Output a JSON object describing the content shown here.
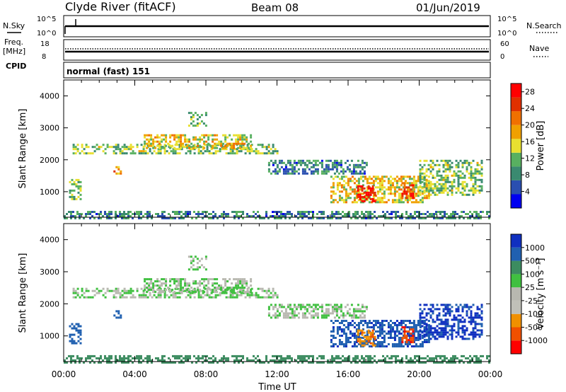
{
  "header": {
    "station": "Clyde River (fitACF)",
    "beam": "Beam 08",
    "date": "01/Jun/2019"
  },
  "strip_panels": {
    "nsky_label": "N.Sky",
    "nsky_ticks": [
      "10^5",
      "10^0"
    ],
    "nsearch_label": "N.Search",
    "nsearch_ticks": [
      "10^5",
      "10^0"
    ],
    "freq_label_1": "Freq.",
    "freq_label_2": "[MHz]",
    "freq_ticks": [
      "18",
      "8"
    ],
    "nave_label": "Nave",
    "nave_ticks": [
      "60",
      "0"
    ],
    "cpid_label": "CPID",
    "cpid_value": "normal (fast) 151"
  },
  "colors": {
    "power": [
      "#0000f0",
      "#2a4fb0",
      "#3a8a70",
      "#58b060",
      "#e8e030",
      "#f0a000",
      "#f07000",
      "#e03000",
      "#ff0000"
    ],
    "velocity": [
      "#ff0000",
      "#f05000",
      "#f09000",
      "#c0c0b8",
      "#b8b8b0",
      "#40c040",
      "#3c8c60",
      "#2060b0",
      "#1030c0"
    ]
  },
  "chart_data": [
    {
      "type": "heatmap",
      "name": "power",
      "ylabel": "Slant Range [km]",
      "yticks": [
        "1000",
        "2000",
        "3000",
        "4000"
      ],
      "ylim": [
        200,
        4500
      ],
      "xlim": [
        0,
        24
      ],
      "colorbar_label": "Power [dB]",
      "colorbar_ticks": [
        "4",
        "8",
        "12",
        "16",
        "20",
        "24",
        "28"
      ],
      "colorbar_range": [
        0,
        30
      ],
      "features": [
        {
          "t0": 0.5,
          "t1": 12.0,
          "r0": 2200,
          "r1": 2500,
          "value": 12
        },
        {
          "t0": 4.5,
          "t1": 10.5,
          "r0": 2400,
          "r1": 2800,
          "value": 16
        },
        {
          "t0": 7.0,
          "t1": 8.0,
          "r0": 3100,
          "r1": 3500,
          "value": 12
        },
        {
          "t0": 11.5,
          "t1": 17.0,
          "r0": 1600,
          "r1": 2000,
          "value": 8
        },
        {
          "t0": 2.8,
          "t1": 3.2,
          "r0": 1550,
          "r1": 1800,
          "value": 20
        },
        {
          "t0": 0.3,
          "t1": 1.0,
          "r0": 800,
          "r1": 1400,
          "value": 12
        },
        {
          "t0": 15.0,
          "t1": 20.5,
          "r0": 700,
          "r1": 1500,
          "value": 16
        },
        {
          "t0": 16.5,
          "t1": 17.5,
          "r0": 700,
          "r1": 1200,
          "value": 28
        },
        {
          "t0": 19.0,
          "t1": 19.6,
          "r0": 800,
          "r1": 1300,
          "value": 24
        },
        {
          "t0": 20.0,
          "t1": 23.5,
          "r0": 900,
          "r1": 2000,
          "value": 12
        },
        {
          "t0": 0.0,
          "t1": 24.0,
          "r0": 200,
          "r1": 400,
          "value": 8
        }
      ]
    },
    {
      "type": "heatmap",
      "name": "velocity",
      "ylabel": "Slant Range [km]",
      "yticks": [
        "1000",
        "2000",
        "3000",
        "4000"
      ],
      "ylim": [
        200,
        4500
      ],
      "xlim": [
        0,
        24
      ],
      "xlabel": "Time UT",
      "xticks": [
        "00:00",
        "04:00",
        "08:00",
        "12:00",
        "16:00",
        "20:00",
        "00:00"
      ],
      "colorbar_label": "Velocity [m s⁻¹]",
      "colorbar_ticks": [
        "1000",
        "500",
        "100",
        "25",
        "-25",
        "-100",
        "-500",
        "-1000"
      ],
      "features": [
        {
          "t0": 0.5,
          "t1": 12.0,
          "r0": 2200,
          "r1": 2500,
          "value": 0
        },
        {
          "t0": 4.5,
          "t1": 10.5,
          "r0": 2400,
          "r1": 2800,
          "value": 0
        },
        {
          "t0": 7.0,
          "t1": 8.0,
          "r0": 3100,
          "r1": 3500,
          "value": 0
        },
        {
          "t0": 11.5,
          "t1": 17.0,
          "r0": 1600,
          "r1": 2000,
          "value": 0
        },
        {
          "t0": 2.8,
          "t1": 3.2,
          "r0": 1550,
          "r1": 1800,
          "value": 150
        },
        {
          "t0": 0.3,
          "t1": 1.0,
          "r0": 800,
          "r1": 1400,
          "value": 200
        },
        {
          "t0": 15.0,
          "t1": 20.5,
          "r0": 700,
          "r1": 1500,
          "value": 400
        },
        {
          "t0": 16.5,
          "t1": 17.5,
          "r0": 700,
          "r1": 1200,
          "value": -400
        },
        {
          "t0": 19.0,
          "t1": 19.6,
          "r0": 800,
          "r1": 1300,
          "value": -900
        },
        {
          "t0": 20.0,
          "t1": 23.5,
          "r0": 900,
          "r1": 2000,
          "value": 600
        },
        {
          "t0": 0.0,
          "t1": 24.0,
          "r0": 200,
          "r1": 400,
          "value": 50
        }
      ]
    }
  ]
}
